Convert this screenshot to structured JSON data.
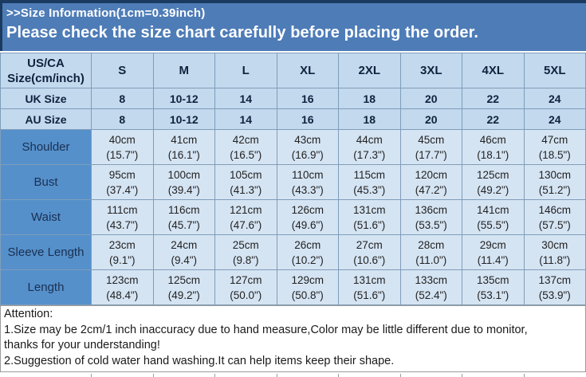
{
  "header": {
    "title": ">>Size Information(1cm=0.39inch)",
    "subtitle": "Please check the size chart carefully before placing the order."
  },
  "table": {
    "corner_header_line1": "US/CA",
    "corner_header_line2": "Size(cm/inch)",
    "size_columns": [
      "S",
      "M",
      "L",
      "XL",
      "2XL",
      "3XL",
      "4XL",
      "5XL"
    ],
    "size_rows": [
      {
        "label": "UK Size",
        "values": [
          "8",
          "10-12",
          "14",
          "16",
          "18",
          "20",
          "22",
          "24"
        ]
      },
      {
        "label": "AU Size",
        "values": [
          "8",
          "10-12",
          "14",
          "16",
          "18",
          "20",
          "22",
          "24"
        ]
      }
    ],
    "measurement_rows": [
      {
        "label": "Shoulder",
        "cells": [
          {
            "cm": "40cm",
            "in": "(15.7\")"
          },
          {
            "cm": "41cm",
            "in": "(16.1\")"
          },
          {
            "cm": "42cm",
            "in": "(16.5\")"
          },
          {
            "cm": "43cm",
            "in": "(16.9\")"
          },
          {
            "cm": "44cm",
            "in": "(17.3\")"
          },
          {
            "cm": "45cm",
            "in": "(17.7\")"
          },
          {
            "cm": "46cm",
            "in": "(18.1\")"
          },
          {
            "cm": "47cm",
            "in": "(18.5\")"
          }
        ]
      },
      {
        "label": "Bust",
        "cells": [
          {
            "cm": "95cm",
            "in": "(37.4\")"
          },
          {
            "cm": "100cm",
            "in": "(39.4\")"
          },
          {
            "cm": "105cm",
            "in": "(41.3\")"
          },
          {
            "cm": "110cm",
            "in": "(43.3\")"
          },
          {
            "cm": "115cm",
            "in": "(45.3\")"
          },
          {
            "cm": "120cm",
            "in": "(47.2\")"
          },
          {
            "cm": "125cm",
            "in": "(49.2\")"
          },
          {
            "cm": "130cm",
            "in": "(51.2\")"
          }
        ]
      },
      {
        "label": "Waist",
        "cells": [
          {
            "cm": "111cm",
            "in": "(43.7\")"
          },
          {
            "cm": "116cm",
            "in": "(45.7\")"
          },
          {
            "cm": "121cm",
            "in": "(47.6\")"
          },
          {
            "cm": "126cm",
            "in": "(49.6\")"
          },
          {
            "cm": "131cm",
            "in": "(51.6\")"
          },
          {
            "cm": "136cm",
            "in": "(53.5\")"
          },
          {
            "cm": "141cm",
            "in": "(55.5\")"
          },
          {
            "cm": "146cm",
            "in": "(57.5\")"
          }
        ]
      },
      {
        "label": "Sleeve Length",
        "cells": [
          {
            "cm": "23cm",
            "in": "(9.1\")"
          },
          {
            "cm": "24cm",
            "in": "(9.4\")"
          },
          {
            "cm": "25cm",
            "in": "(9.8\")"
          },
          {
            "cm": "26cm",
            "in": "(10.2\")"
          },
          {
            "cm": "27cm",
            "in": "(10.6\")"
          },
          {
            "cm": "28cm",
            "in": "(11.0\")"
          },
          {
            "cm": "29cm",
            "in": "(11.4\")"
          },
          {
            "cm": "30cm",
            "in": "(11.8\")"
          }
        ]
      },
      {
        "label": "Length",
        "cells": [
          {
            "cm": "123cm",
            "in": "(48.4\")"
          },
          {
            "cm": "125cm",
            "in": "(49.2\")"
          },
          {
            "cm": "127cm",
            "in": "(50.0\")"
          },
          {
            "cm": "129cm",
            "in": "(50.8\")"
          },
          {
            "cm": "131cm",
            "in": "(51.6\")"
          },
          {
            "cm": "133cm",
            "in": "(52.4\")"
          },
          {
            "cm": "135cm",
            "in": "(53.1\")"
          },
          {
            "cm": "137cm",
            "in": "(53.9\")"
          }
        ]
      }
    ]
  },
  "attention": {
    "heading": "Attention:",
    "line1": "1.Size may be 2cm/1 inch inaccuracy due to hand measure,Color may be little different due to monitor,",
    "line2": "thanks for your understanding!",
    "line3": "2.Suggestion of cold water hand washing.It can help items keep their shape."
  },
  "colors": {
    "banner_bg": "#4E7CB7",
    "dark_border": "#1B3A60",
    "header_cell_bg": "#C3D9EE",
    "data_cell_bg": "#D5E4F3",
    "label_cell_bg": "#5590CB",
    "grid_border": "#7F9DB9",
    "header_text": "#10233D",
    "data_text": "#222222",
    "attention_text": "#1A1A1A"
  }
}
